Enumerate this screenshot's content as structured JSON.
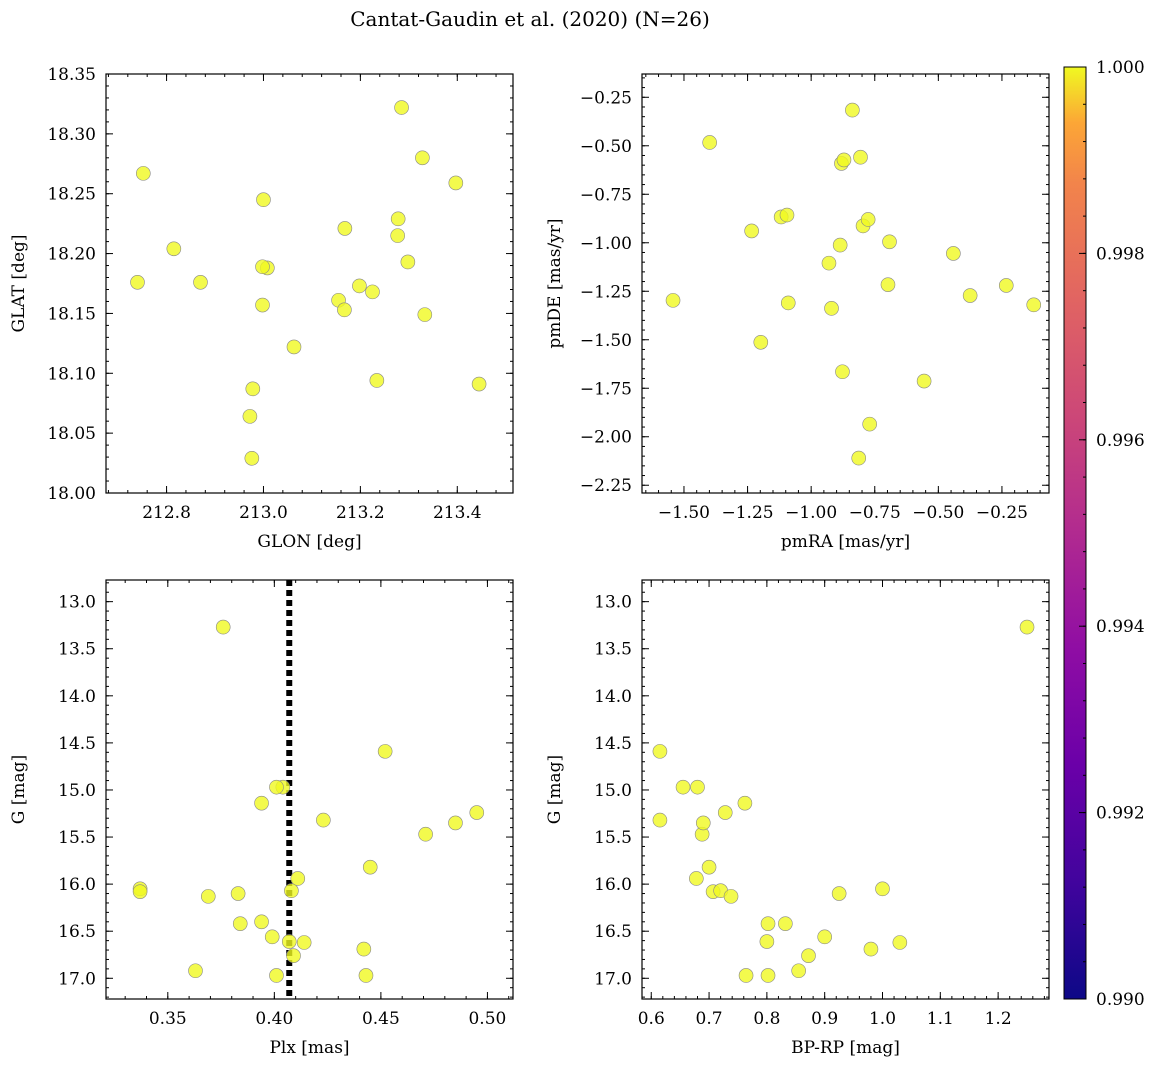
{
  "figure_title": "Cantat-Gaudin et al. (2020) (N=26)",
  "colors": {
    "point": "#f0f921",
    "edge": "#888888",
    "refline": "#000000"
  },
  "chart_data": [
    {
      "type": "scatter",
      "xlabel": "GLON [deg]",
      "ylabel": "GLAT [deg]",
      "xlim": [
        212.675,
        213.515
      ],
      "ylim": [
        18.0,
        18.35
      ],
      "xticks": [
        212.8,
        213.0,
        213.2,
        213.4
      ],
      "xtick_labels": [
        "212.8",
        "213.0",
        "213.2",
        "213.4"
      ],
      "yticks": [
        18.0,
        18.05,
        18.1,
        18.15,
        18.2,
        18.25,
        18.3,
        18.35
      ],
      "ytick_labels": [
        "18.00",
        "18.05",
        "18.10",
        "18.15",
        "18.20",
        "18.25",
        "18.30",
        "18.35"
      ],
      "x": [
        212.752,
        212.74,
        212.815,
        212.87,
        213.0,
        213.008,
        212.998,
        212.998,
        213.063,
        212.978,
        212.972,
        212.976,
        213.155,
        213.167,
        213.168,
        213.198,
        213.225,
        213.234,
        213.285,
        213.278,
        213.277,
        213.298,
        213.328,
        213.333,
        213.397,
        213.445
      ],
      "y": [
        18.267,
        18.176,
        18.204,
        18.176,
        18.245,
        18.188,
        18.189,
        18.157,
        18.122,
        18.087,
        18.064,
        18.029,
        18.161,
        18.153,
        18.221,
        18.173,
        18.168,
        18.094,
        18.322,
        18.229,
        18.215,
        18.193,
        18.28,
        18.149,
        18.259,
        18.091
      ]
    },
    {
      "type": "scatter",
      "xlabel": "pmRA [mas/yr]",
      "ylabel": "pmDE [mas/yr]",
      "xlim": [
        -1.665,
        -0.065
      ],
      "ylim": [
        -2.29,
        -0.13
      ],
      "xticks": [
        -1.5,
        -1.25,
        -1.0,
        -0.75,
        -0.5,
        -0.25
      ],
      "xtick_labels": [
        "−1.50",
        "−1.25",
        "−1.00",
        "−0.75",
        "−0.50",
        "−0.25"
      ],
      "yticks": [
        -2.25,
        -2.0,
        -1.75,
        -1.5,
        -1.25,
        -1.0,
        -0.75,
        -0.5,
        -0.25
      ],
      "ytick_labels": [
        "−2.25",
        "−2.00",
        "−1.75",
        "−1.50",
        "−1.25",
        "−1.00",
        "−0.75",
        "−0.50",
        "−0.25"
      ],
      "x": [
        -1.543,
        -1.399,
        -1.234,
        -1.198,
        -1.118,
        -1.09,
        -1.095,
        -0.92,
        -0.93,
        -0.886,
        -0.881,
        -0.871,
        -0.838,
        -0.806,
        -0.796,
        -0.776,
        -0.77,
        -0.877,
        -0.813,
        -0.692,
        -0.698,
        -0.556,
        -0.441,
        -0.375,
        -0.233,
        -0.125
      ],
      "y": [
        -1.297,
        -0.483,
        -0.939,
        -1.513,
        -0.867,
        -1.31,
        -0.857,
        -1.338,
        -1.105,
        -1.012,
        -0.591,
        -0.573,
        -0.316,
        -0.559,
        -0.913,
        -0.88,
        -1.935,
        -1.665,
        -2.11,
        -0.995,
        -1.216,
        -1.713,
        -1.055,
        -1.272,
        -1.22,
        -1.32
      ]
    },
    {
      "type": "scatter",
      "xlabel": "Plx [mas]",
      "ylabel": "G [mag]",
      "xlim": [
        0.321,
        0.512
      ],
      "ylim": [
        17.22,
        12.77
      ],
      "xticks": [
        0.35,
        0.4,
        0.45,
        0.5
      ],
      "xtick_labels": [
        "0.35",
        "0.40",
        "0.45",
        "0.50"
      ],
      "yticks": [
        13.0,
        13.5,
        14.0,
        14.5,
        15.0,
        15.5,
        16.0,
        16.5,
        17.0
      ],
      "ytick_labels": [
        "13.0",
        "13.5",
        "14.0",
        "14.5",
        "15.0",
        "15.5",
        "16.0",
        "16.5",
        "17.0"
      ],
      "vline": 0.407,
      "x": [
        0.337,
        0.337,
        0.369,
        0.376,
        0.363,
        0.383,
        0.384,
        0.394,
        0.394,
        0.399,
        0.401,
        0.404,
        0.407,
        0.408,
        0.409,
        0.411,
        0.414,
        0.423,
        0.442,
        0.443,
        0.445,
        0.452,
        0.471,
        0.485,
        0.495,
        0.401
      ],
      "y": [
        16.05,
        16.08,
        16.13,
        13.27,
        16.92,
        16.1,
        16.42,
        15.14,
        16.4,
        16.56,
        16.97,
        14.97,
        16.61,
        16.07,
        16.76,
        15.94,
        16.62,
        15.32,
        16.69,
        16.97,
        15.82,
        14.59,
        15.47,
        15.35,
        15.24,
        14.97
      ]
    },
    {
      "type": "scatter",
      "xlabel": "BP-RP [mag]",
      "ylabel": "G [mag]",
      "xlim": [
        0.584,
        1.288
      ],
      "ylim": [
        17.22,
        12.77
      ],
      "xticks": [
        0.6,
        0.7,
        0.8,
        0.9,
        1.0,
        1.1,
        1.2
      ],
      "xtick_labels": [
        "0.6",
        "0.7",
        "0.8",
        "0.9",
        "1.0",
        "1.1",
        "1.2"
      ],
      "yticks": [
        13.0,
        13.5,
        14.0,
        14.5,
        15.0,
        15.5,
        16.0,
        16.5,
        17.0
      ],
      "ytick_labels": [
        "13.0",
        "13.5",
        "14.0",
        "14.5",
        "15.0",
        "15.5",
        "16.0",
        "16.5",
        "17.0"
      ],
      "x": [
        0.615,
        0.615,
        0.655,
        0.678,
        0.68,
        0.688,
        0.69,
        0.7,
        0.707,
        0.72,
        0.728,
        0.738,
        0.762,
        0.764,
        0.8,
        0.802,
        0.802,
        0.832,
        0.855,
        0.872,
        0.9,
        0.925,
        0.98,
        1.0,
        1.03,
        1.25
      ],
      "y": [
        14.59,
        15.32,
        14.97,
        15.94,
        14.97,
        15.47,
        15.35,
        15.82,
        16.08,
        16.07,
        15.24,
        16.13,
        15.14,
        16.97,
        16.61,
        16.42,
        16.97,
        16.42,
        16.92,
        16.76,
        16.56,
        16.1,
        16.69,
        16.05,
        16.62,
        13.27
      ]
    }
  ],
  "colorbar": {
    "min": 0.99,
    "max": 1.0,
    "colormap": "plasma",
    "ticks": [
      0.99,
      0.992,
      0.994,
      0.996,
      0.998,
      1.0
    ],
    "tick_labels": [
      "0.990",
      "0.992",
      "0.994",
      "0.996",
      "0.998",
      "1.000"
    ]
  }
}
